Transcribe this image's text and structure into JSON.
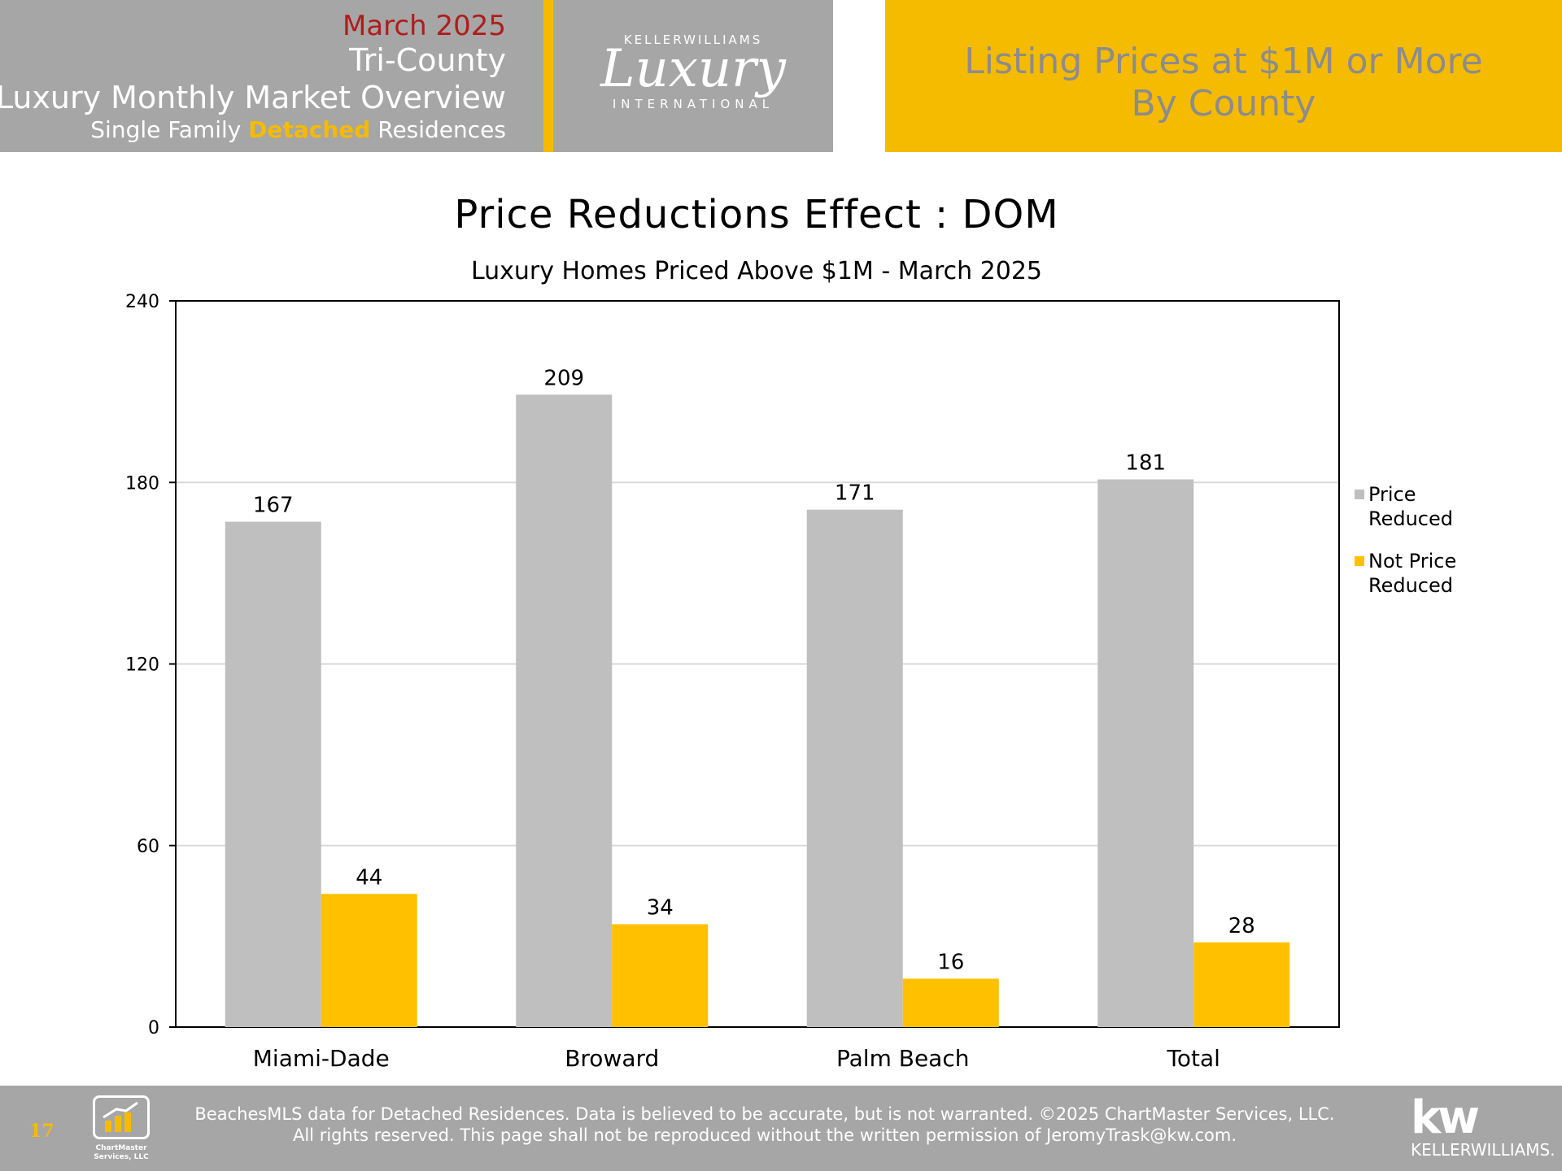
{
  "header": {
    "date": "March 2025",
    "region": "Tri-County",
    "report": "Luxury Monthly Market Overview",
    "segment_prefix": "Single Family ",
    "segment_highlight": "Detached",
    "segment_suffix": " Residences",
    "logo_top": "KELLERWILLIAMS",
    "logo_script": "Luxury",
    "logo_bottom": "INTERNATIONAL",
    "right_line1": "Listing Prices at $1M or More",
    "right_line2": "By County"
  },
  "chart_data": {
    "type": "bar",
    "title": "Price Reductions Effect : DOM",
    "subtitle": "Luxury Homes Priced Above $1M - March 2025",
    "categories": [
      "Miami-Dade",
      "Broward",
      "Palm Beach",
      "Total"
    ],
    "series": [
      {
        "name": "Price Reduced",
        "legend_lines": [
          "Price",
          "Reduced"
        ],
        "color": "#bfbfbf",
        "values": [
          167,
          209,
          171,
          181
        ]
      },
      {
        "name": "Not Price Reduced",
        "legend_lines": [
          "Not Price",
          "Reduced"
        ],
        "color": "#ffc000",
        "values": [
          44,
          34,
          16,
          28
        ]
      }
    ],
    "ylim": [
      0,
      240
    ],
    "yticks": [
      0,
      60,
      120,
      180,
      240
    ],
    "grid": true,
    "legend": "right"
  },
  "footer": {
    "page_number": "17",
    "brand": "ChartMaster Services, LLC",
    "line1": "BeachesMLS data for Detached Residences.  Data is believed to be accurate, but is not warranted.   ©2025  ChartMaster Services, LLC.",
    "line2": "All rights reserved. This page shall not be reproduced without the written permission of JeromyTrask@kw.com.",
    "kw_logo": "kw",
    "kw_name": "KELLERWILLIAMS."
  },
  "colors": {
    "header_gray": "#a6a6a6",
    "accent_yellow": "#f5bb00",
    "date_red": "#b01c1c"
  }
}
